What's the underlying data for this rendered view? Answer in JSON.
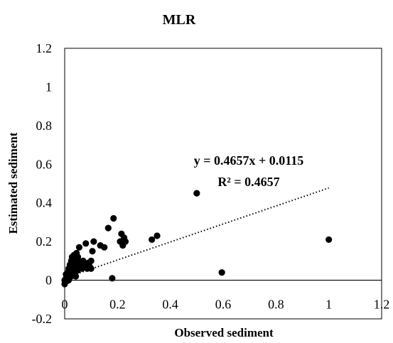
{
  "chart_data": {
    "type": "scatter",
    "title": "MLR",
    "xlabel": "Observed sediment",
    "ylabel": "Estimated sediment",
    "xlim": [
      0,
      1.2
    ],
    "ylim": [
      -0.2,
      1.2
    ],
    "xticks": [
      "0",
      "0.2",
      "0.4",
      "0.6",
      "0.8",
      "1",
      "1.2"
    ],
    "yticks": [
      "-0.2",
      "0",
      "0.2",
      "0.4",
      "0.6",
      "0.8",
      "1",
      "1.2"
    ],
    "grid": false,
    "legend": "none",
    "marker_color": "#000000",
    "trendline": {
      "style": "dotted",
      "slope": 0.4657,
      "intercept": 0.0115,
      "x_range": [
        0,
        1
      ],
      "equation": "y = 0.4657x + 0.0115",
      "r_squared": "R² = 0.4657"
    },
    "points": [
      [
        0.0,
        -0.02
      ],
      [
        0.0,
        0.0
      ],
      [
        0.003,
        -0.01
      ],
      [
        0.005,
        0.01
      ],
      [
        0.005,
        0.03
      ],
      [
        0.008,
        -0.005
      ],
      [
        0.01,
        0.02
      ],
      [
        0.012,
        0.04
      ],
      [
        0.015,
        0.0
      ],
      [
        0.015,
        0.06
      ],
      [
        0.018,
        0.03
      ],
      [
        0.02,
        0.08
      ],
      [
        0.022,
        0.05
      ],
      [
        0.025,
        0.1
      ],
      [
        0.025,
        0.02
      ],
      [
        0.028,
        0.12
      ],
      [
        0.03,
        0.07
      ],
      [
        0.032,
        0.04
      ],
      [
        0.035,
        0.09
      ],
      [
        0.035,
        0.13
      ],
      [
        0.038,
        0.06
      ],
      [
        0.04,
        0.11
      ],
      [
        0.042,
        0.02
      ],
      [
        0.045,
        0.08
      ],
      [
        0.045,
        0.14
      ],
      [
        0.048,
        0.05
      ],
      [
        0.05,
        0.12
      ],
      [
        0.05,
        0.1
      ],
      [
        0.055,
        0.17
      ],
      [
        0.058,
        0.07
      ],
      [
        0.06,
        0.09
      ],
      [
        0.065,
        0.06
      ],
      [
        0.07,
        0.1
      ],
      [
        0.075,
        0.08
      ],
      [
        0.08,
        0.19
      ],
      [
        0.085,
        0.06
      ],
      [
        0.09,
        0.09
      ],
      [
        0.095,
        0.07
      ],
      [
        0.1,
        0.1
      ],
      [
        0.1,
        0.06
      ],
      [
        0.105,
        0.15
      ],
      [
        0.11,
        0.2
      ],
      [
        0.135,
        0.18
      ],
      [
        0.15,
        0.17
      ],
      [
        0.165,
        0.27
      ],
      [
        0.18,
        0.01
      ],
      [
        0.185,
        0.32
      ],
      [
        0.21,
        0.2
      ],
      [
        0.215,
        0.24
      ],
      [
        0.22,
        0.18
      ],
      [
        0.225,
        0.22
      ],
      [
        0.23,
        0.2
      ],
      [
        0.33,
        0.21
      ],
      [
        0.35,
        0.23
      ],
      [
        0.5,
        0.45
      ],
      [
        0.595,
        0.04
      ],
      [
        1.0,
        0.21
      ]
    ]
  }
}
